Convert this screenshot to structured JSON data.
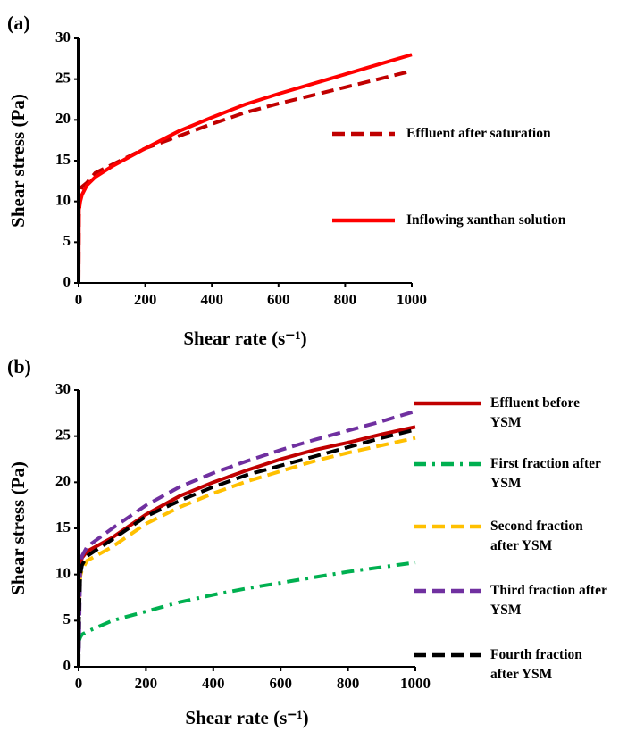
{
  "chart_data": [
    {
      "type": "line",
      "panel_label": "(a)",
      "xlabel": "Shear rate (s⁻¹)",
      "ylabel": "Shear stress (Pa)",
      "x": [
        0,
        1,
        5,
        10,
        25,
        50,
        100,
        200,
        300,
        400,
        500,
        600,
        700,
        800,
        900,
        1000
      ],
      "series": [
        {
          "name": "Effluent after saturation",
          "color": "#c00000",
          "dash": "dashed",
          "values": [
            0,
            8,
            11,
            11.8,
            12.3,
            13.5,
            14.5,
            16.5,
            18,
            19.5,
            20.9,
            22,
            23,
            24,
            25,
            26
          ]
        },
        {
          "name": "Inflowing xanthan solution",
          "color": "#ff0000",
          "dash": "solid",
          "values": [
            0,
            9,
            10,
            10.8,
            12,
            13,
            14.3,
            16.5,
            18.6,
            20.3,
            21.9,
            23.2,
            24.4,
            25.6,
            26.8,
            28
          ]
        }
      ],
      "xlim": [
        0,
        1000
      ],
      "ylim": [
        0,
        30
      ],
      "xticks": [
        0,
        200,
        400,
        600,
        800,
        1000
      ],
      "yticks": [
        0,
        5,
        10,
        15,
        20,
        25,
        30
      ],
      "grid": false
    },
    {
      "type": "line",
      "panel_label": "(b)",
      "xlabel": "Shear rate (s⁻¹)",
      "ylabel": "Shear stress (Pa)",
      "x": [
        0,
        1,
        5,
        10,
        25,
        100,
        200,
        300,
        400,
        500,
        600,
        700,
        800,
        900,
        1000
      ],
      "series": [
        {
          "name": "Effluent before YSM",
          "color": "#c00000",
          "dash": "solid",
          "values": [
            6.5,
            7,
            11,
            11.8,
            12.5,
            14,
            16.5,
            18.5,
            20,
            21.3,
            22.5,
            23.5,
            24.3,
            25.2,
            26
          ]
        },
        {
          "name": "First fraction after YSM",
          "color": "#00b050",
          "dash": "dashdot",
          "values": [
            2.6,
            2.8,
            3.2,
            3.5,
            3.8,
            5,
            6,
            7,
            7.8,
            8.5,
            9.1,
            9.7,
            10.3,
            10.8,
            11.3
          ]
        },
        {
          "name": "Second fraction after YSM",
          "color": "#ffc000",
          "dash": "dashed",
          "values": [
            7,
            8,
            9.8,
            10.5,
            11.5,
            13,
            15.5,
            17.3,
            18.8,
            20.1,
            21.2,
            22.3,
            23.2,
            24,
            24.8
          ]
        },
        {
          "name": "Third fraction after YSM",
          "color": "#7030a0",
          "dash": "dashed",
          "values": [
            1.5,
            2,
            10.5,
            12,
            13,
            15,
            17.5,
            19.5,
            21,
            22.3,
            23.5,
            24.6,
            25.6,
            26.6,
            27.7
          ]
        },
        {
          "name": "Fourth fraction after YSM",
          "color": "#000000",
          "dash": "dashed",
          "values": [
            0,
            5,
            10,
            11,
            12,
            13.8,
            16.3,
            18,
            19.5,
            20.8,
            21.8,
            22.8,
            23.8,
            24.8,
            25.7
          ]
        }
      ],
      "xlim": [
        0,
        1000
      ],
      "ylim": [
        0,
        30
      ],
      "xticks": [
        0,
        200,
        400,
        600,
        800,
        1000
      ],
      "yticks": [
        0,
        5,
        10,
        15,
        20,
        25,
        30
      ],
      "grid": false
    }
  ]
}
